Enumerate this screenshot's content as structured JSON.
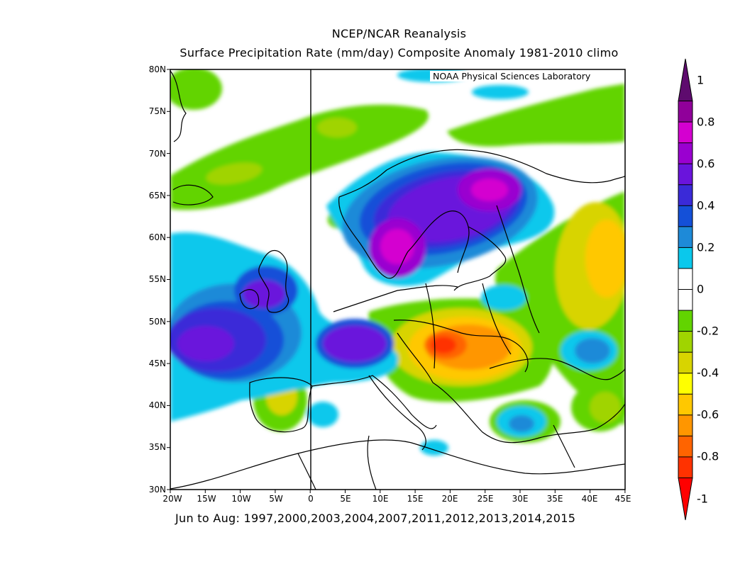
{
  "title": "NCEP/NCAR Reanalysis",
  "subtitle": "Surface Precipitation Rate (mm/day) Composite Anomaly 1981-2010 climo",
  "credit": "NOAA Physical Sciences Laboratory",
  "footer": "Jun to Aug: 1997,2000,2003,2004,2007,2011,2012,2013,2014,2015",
  "lat_labels": [
    "80N",
    "75N",
    "70N",
    "65N",
    "60N",
    "55N",
    "50N",
    "45N",
    "40N",
    "35N",
    "30N"
  ],
  "lon_labels": [
    "20W",
    "15W",
    "10W",
    "5W",
    "0",
    "5E",
    "10E",
    "15E",
    "20E",
    "25E",
    "30E",
    "35E",
    "40E",
    "45E"
  ],
  "colorbar": {
    "labels": [
      "1",
      "0.8",
      "0.6",
      "0.4",
      "0.2",
      "0",
      "-0.2",
      "-0.4",
      "-0.6",
      "-0.8",
      "-1"
    ],
    "colors": [
      "#5e0b6e",
      "#90009a",
      "#d400d0",
      "#9a00d0",
      "#6a14dc",
      "#3a2ad8",
      "#1450d8",
      "#1e8ad8",
      "#0ac8ec",
      "#ffffff",
      "#ffffff",
      "#62d400",
      "#a0d400",
      "#d8d400",
      "#ffff00",
      "#ffc800",
      "#ff9600",
      "#ff6400",
      "#ff3200",
      "#ff0000"
    ]
  },
  "map_colors": {
    "green": "#62d400",
    "lightgreen": "#a0d400",
    "yellowgreen": "#d8d400",
    "yellow": "#ffff00",
    "gold": "#ffc800",
    "orange": "#ff9600",
    "darkorange": "#ff6400",
    "red": "#ff3200",
    "cyan": "#0ac8ec",
    "blue": "#1e8ad8",
    "darkblue": "#1450d8",
    "indigo": "#3a2ad8",
    "violet": "#6a14dc",
    "purple": "#9a00d0",
    "magenta": "#d400d0"
  }
}
